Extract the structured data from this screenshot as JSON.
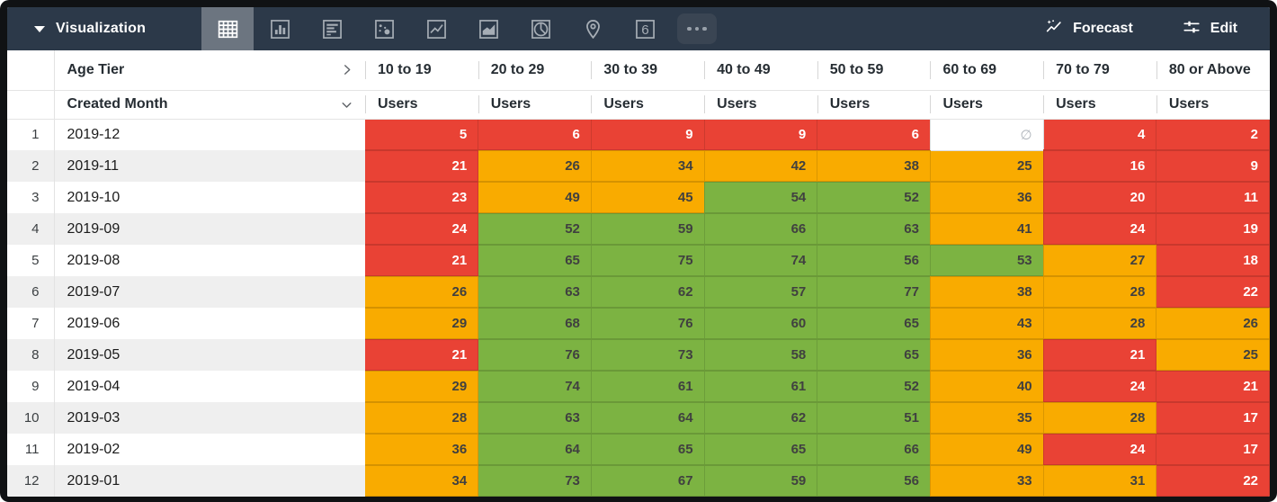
{
  "colors": {
    "barBg": "#2C3949",
    "selBg": "#6C7580",
    "red": "#E94235",
    "orange": "#F9AB00",
    "green": "#7CB342"
  },
  "toolbar": {
    "title": "Visualization",
    "forecast_label": "Forecast",
    "edit_label": "Edit",
    "icons": [
      {
        "name": "table-chart-icon",
        "selected": true
      },
      {
        "name": "column-chart-icon",
        "selected": false
      },
      {
        "name": "bar-chart-icon",
        "selected": false
      },
      {
        "name": "scatter-chart-icon",
        "selected": false
      },
      {
        "name": "line-chart-icon",
        "selected": false
      },
      {
        "name": "area-chart-icon",
        "selected": false
      },
      {
        "name": "pie-chart-icon",
        "selected": false
      },
      {
        "name": "map-pin-icon",
        "selected": false
      },
      {
        "name": "single-value-icon",
        "selected": false,
        "glyph": "6"
      },
      {
        "name": "more-options-icon",
        "selected": false
      }
    ]
  },
  "table": {
    "dimension_header": "Age Tier",
    "row_dimension_header": "Created Month",
    "measure_label": "Users",
    "null_symbol": "∅",
    "columns": [
      "10 to 19",
      "20 to 29",
      "30 to 39",
      "40 to 49",
      "50 to 59",
      "60 to 69",
      "70 to 79",
      "80 or Above"
    ],
    "rows": [
      {
        "index": 1,
        "month": "2019-12",
        "values": [
          5,
          6,
          9,
          9,
          6,
          null,
          4,
          2
        ],
        "colors": [
          "red",
          "red",
          "red",
          "red",
          "red",
          "null",
          "red",
          "red"
        ]
      },
      {
        "index": 2,
        "month": "2019-11",
        "values": [
          21,
          26,
          34,
          42,
          38,
          25,
          16,
          9
        ],
        "colors": [
          "red",
          "orange",
          "orange",
          "orange",
          "orange",
          "orange",
          "red",
          "red"
        ]
      },
      {
        "index": 3,
        "month": "2019-10",
        "values": [
          23,
          49,
          45,
          54,
          52,
          36,
          20,
          11
        ],
        "colors": [
          "red",
          "orange",
          "orange",
          "green",
          "green",
          "orange",
          "red",
          "red"
        ]
      },
      {
        "index": 4,
        "month": "2019-09",
        "values": [
          24,
          52,
          59,
          66,
          63,
          41,
          24,
          19
        ],
        "colors": [
          "red",
          "green",
          "green",
          "green",
          "green",
          "orange",
          "red",
          "red"
        ]
      },
      {
        "index": 5,
        "month": "2019-08",
        "values": [
          21,
          65,
          75,
          74,
          56,
          53,
          27,
          18
        ],
        "colors": [
          "red",
          "green",
          "green",
          "green",
          "green",
          "green",
          "orange",
          "red"
        ]
      },
      {
        "index": 6,
        "month": "2019-07",
        "values": [
          26,
          63,
          62,
          57,
          77,
          38,
          28,
          22
        ],
        "colors": [
          "orange",
          "green",
          "green",
          "green",
          "green",
          "orange",
          "orange",
          "red"
        ]
      },
      {
        "index": 7,
        "month": "2019-06",
        "values": [
          29,
          68,
          76,
          60,
          65,
          43,
          28,
          26
        ],
        "colors": [
          "orange",
          "green",
          "green",
          "green",
          "green",
          "orange",
          "orange",
          "orange"
        ]
      },
      {
        "index": 8,
        "month": "2019-05",
        "values": [
          21,
          76,
          73,
          58,
          65,
          36,
          21,
          25
        ],
        "colors": [
          "red",
          "green",
          "green",
          "green",
          "green",
          "orange",
          "red",
          "orange"
        ]
      },
      {
        "index": 9,
        "month": "2019-04",
        "values": [
          29,
          74,
          61,
          61,
          52,
          40,
          24,
          21
        ],
        "colors": [
          "orange",
          "green",
          "green",
          "green",
          "green",
          "orange",
          "red",
          "red"
        ]
      },
      {
        "index": 10,
        "month": "2019-03",
        "values": [
          28,
          63,
          64,
          62,
          51,
          35,
          28,
          17
        ],
        "colors": [
          "orange",
          "green",
          "green",
          "green",
          "green",
          "orange",
          "orange",
          "red"
        ]
      },
      {
        "index": 11,
        "month": "2019-02",
        "values": [
          36,
          64,
          65,
          65,
          66,
          49,
          24,
          17
        ],
        "colors": [
          "orange",
          "green",
          "green",
          "green",
          "green",
          "orange",
          "red",
          "red"
        ]
      },
      {
        "index": 12,
        "month": "2019-01",
        "values": [
          34,
          73,
          67,
          59,
          56,
          33,
          31,
          22
        ],
        "colors": [
          "orange",
          "green",
          "green",
          "green",
          "green",
          "orange",
          "orange",
          "red"
        ]
      }
    ]
  }
}
